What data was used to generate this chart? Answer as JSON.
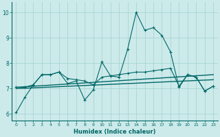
{
  "xlabel": "Humidex (Indice chaleur)",
  "xlim": [
    -0.5,
    23.5
  ],
  "ylim": [
    5.75,
    10.4
  ],
  "xticks": [
    0,
    1,
    2,
    3,
    4,
    5,
    6,
    7,
    8,
    9,
    10,
    11,
    12,
    13,
    14,
    15,
    16,
    17,
    18,
    19,
    20,
    21,
    22,
    23
  ],
  "yticks": [
    6,
    7,
    8,
    9,
    10
  ],
  "bg_color": "#cceaea",
  "grid_color": "#aad4d4",
  "line_color": "#006666",
  "line1_y": [
    6.05,
    6.65,
    7.15,
    7.55,
    7.55,
    7.65,
    7.2,
    7.3,
    6.55,
    6.95,
    8.05,
    7.5,
    7.45,
    8.55,
    10.0,
    9.3,
    9.4,
    9.1,
    8.45,
    7.05,
    7.55,
    7.45,
    6.9,
    7.1
  ],
  "line2_y": [
    7.05,
    7.05,
    7.15,
    7.55,
    7.55,
    7.65,
    7.4,
    7.35,
    7.3,
    7.15,
    7.45,
    7.5,
    7.55,
    7.6,
    7.65,
    7.65,
    7.7,
    7.75,
    7.8,
    7.1,
    7.55,
    7.45,
    6.9,
    7.1
  ],
  "trend1_x": [
    0,
    23
  ],
  "trend1_y": [
    7.0,
    7.35
  ],
  "trend2_x": [
    0,
    23
  ],
  "trend2_y": [
    7.05,
    7.55
  ]
}
